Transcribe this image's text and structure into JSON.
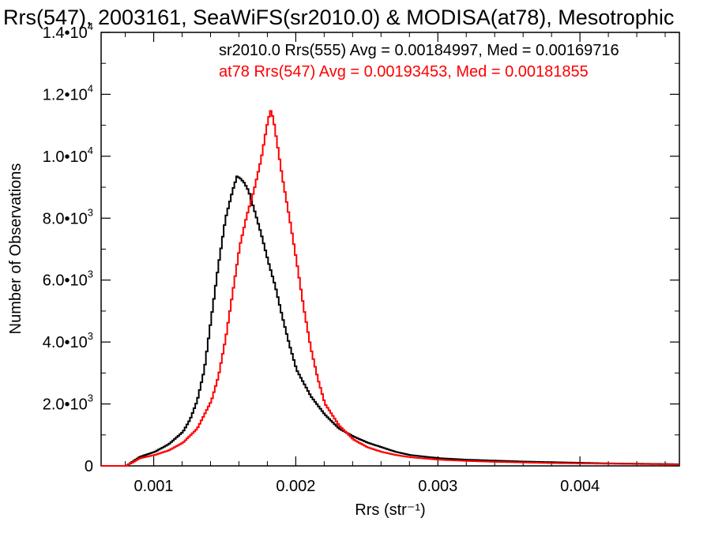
{
  "chart_data": {
    "type": "line",
    "title": "Rrs(547), 2003161, SeaWiFS(sr2010.0) & MODISA(at78), Mesotrophic",
    "xlabel": "Rrs (str⁻¹)",
    "ylabel": "Number of Observations",
    "xlim": [
      0.00063,
      0.0047
    ],
    "ylim": [
      0,
      14000
    ],
    "x_ticks": [
      {
        "value": 0.001,
        "label": "0.001"
      },
      {
        "value": 0.002,
        "label": "0.002"
      },
      {
        "value": 0.003,
        "label": "0.003"
      },
      {
        "value": 0.004,
        "label": "0.004"
      }
    ],
    "y_ticks": [
      {
        "value": 0,
        "mant": "0",
        "exp": ""
      },
      {
        "value": 2000,
        "mant": "2.0•10",
        "exp": "3"
      },
      {
        "value": 4000,
        "mant": "4.0•10",
        "exp": "3"
      },
      {
        "value": 6000,
        "mant": "6.0•10",
        "exp": "3"
      },
      {
        "value": 8000,
        "mant": "8.0•10",
        "exp": "3"
      },
      {
        "value": 10000,
        "mant": "1.0•10",
        "exp": "4"
      },
      {
        "value": 12000,
        "mant": "1.2•10",
        "exp": "4"
      },
      {
        "value": 14000,
        "mant": "1.4•10",
        "exp": "4"
      }
    ],
    "grid": false,
    "legend_position": "top-right",
    "series": [
      {
        "name": "sr2010.0 Rrs(555) Avg = 0.00184997, Med = 0.00169716",
        "color": "#000000",
        "x": [
          0.00063,
          0.0008,
          0.0009,
          0.001,
          0.0011,
          0.0012,
          0.00125,
          0.0013,
          0.00135,
          0.0014,
          0.00145,
          0.0015,
          0.00155,
          0.00158,
          0.0016,
          0.00163,
          0.00166,
          0.0017,
          0.00175,
          0.0018,
          0.00185,
          0.0019,
          0.00195,
          0.002,
          0.0021,
          0.0022,
          0.0023,
          0.0024,
          0.0025,
          0.0026,
          0.0027,
          0.0028,
          0.003,
          0.0032,
          0.0034,
          0.0036,
          0.0038,
          0.004,
          0.0042,
          0.0044,
          0.0046,
          0.0047
        ],
        "values": [
          0,
          0,
          300,
          450,
          700,
          1100,
          1500,
          2100,
          3100,
          4800,
          6500,
          8000,
          8900,
          9350,
          9300,
          9150,
          8900,
          8300,
          7500,
          6600,
          5800,
          4800,
          3900,
          3100,
          2250,
          1650,
          1200,
          950,
          750,
          600,
          450,
          350,
          250,
          200,
          170,
          140,
          120,
          100,
          80,
          70,
          60,
          50
        ]
      },
      {
        "name": "at78 Rrs(547) Avg = 0.00193453, Med = 0.00181855",
        "color": "#ff0000",
        "x": [
          0.00063,
          0.0008,
          0.0009,
          0.001,
          0.0011,
          0.0012,
          0.0013,
          0.0014,
          0.00145,
          0.0015,
          0.00155,
          0.0016,
          0.00165,
          0.0017,
          0.00175,
          0.00178,
          0.0018,
          0.00182,
          0.00184,
          0.00186,
          0.0019,
          0.00195,
          0.002,
          0.00205,
          0.0021,
          0.00215,
          0.0022,
          0.0023,
          0.0024,
          0.0025,
          0.0026,
          0.0027,
          0.0028,
          0.003,
          0.0032,
          0.0034,
          0.0036,
          0.0038,
          0.004,
          0.0042,
          0.0044,
          0.0046,
          0.0047
        ],
        "values": [
          0,
          0,
          250,
          350,
          500,
          750,
          1200,
          2100,
          2900,
          4100,
          5600,
          7100,
          8100,
          8900,
          9900,
          10700,
          11200,
          11500,
          11100,
          10500,
          9300,
          8000,
          6600,
          5100,
          3800,
          2800,
          2000,
          1300,
          850,
          600,
          450,
          350,
          280,
          200,
          160,
          130,
          110,
          90,
          80,
          70,
          60,
          50,
          40
        ]
      }
    ]
  }
}
